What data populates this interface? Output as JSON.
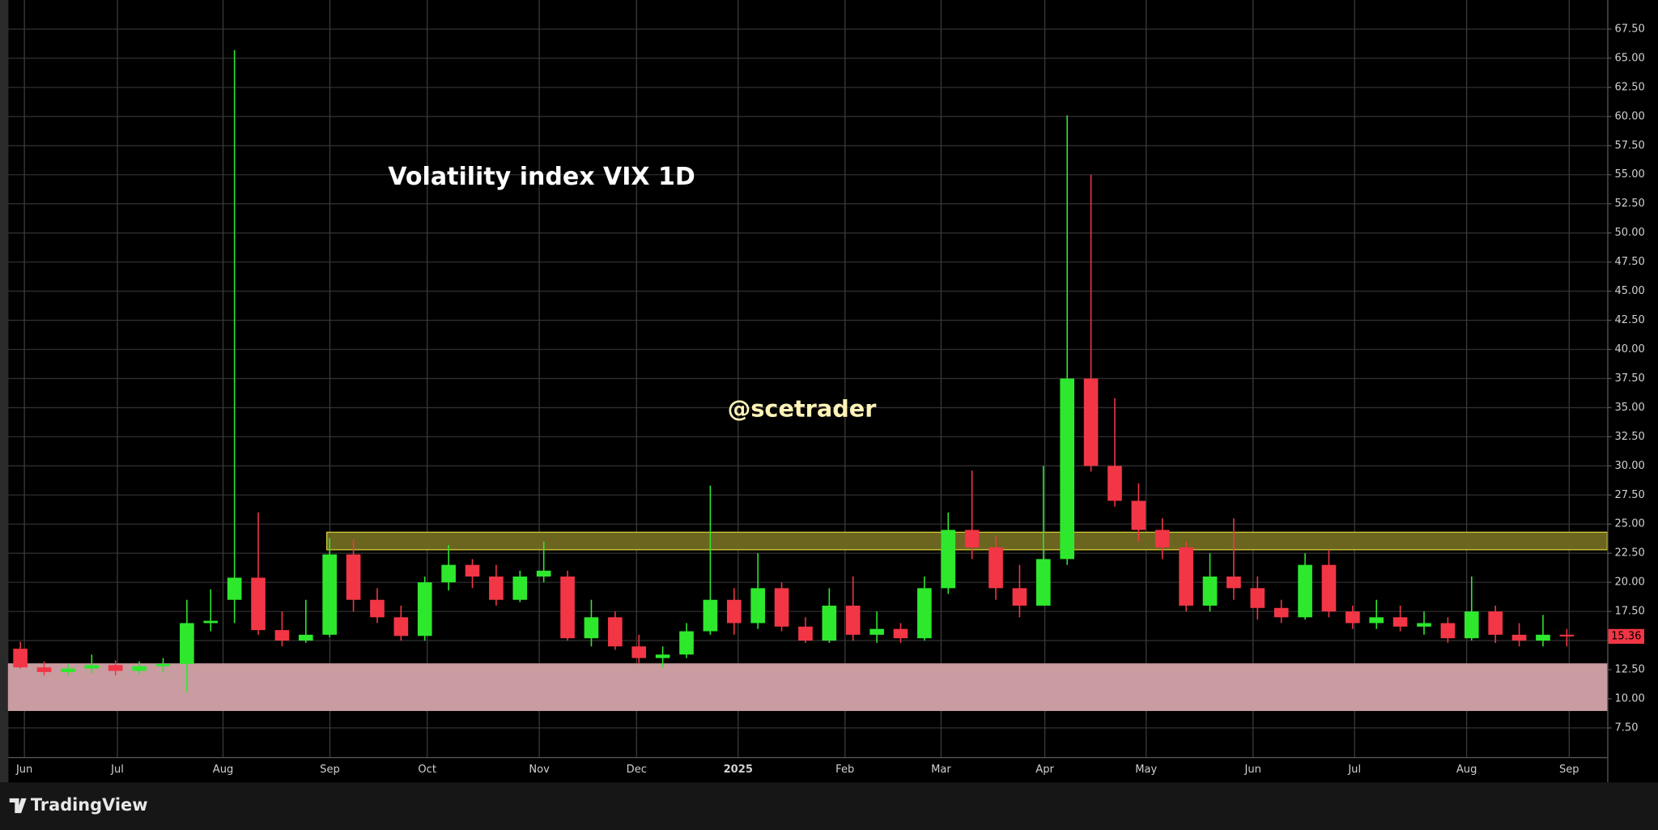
{
  "chart_data": {
    "type": "candlestick",
    "title": "Volatility index VIX 1D",
    "watermark": "@scetrader",
    "brand": "TradingView",
    "up_color": "#2ee82e",
    "down_color": "#f23645",
    "grid": true,
    "xlim": [
      0,
      67.2
    ],
    "ylim": [
      5,
      70
    ],
    "xticks": [
      {
        "value": 0.67,
        "label": "Jun"
      },
      {
        "value": 4.58,
        "label": "Jul"
      },
      {
        "value": 9.02,
        "label": "Aug"
      },
      {
        "value": 13.51,
        "label": "Sep"
      },
      {
        "value": 17.6,
        "label": "Oct"
      },
      {
        "value": 22.31,
        "label": "Nov"
      },
      {
        "value": 26.4,
        "label": "Dec"
      },
      {
        "value": 30.67,
        "label": "2025"
      },
      {
        "value": 35.16,
        "label": "Feb"
      },
      {
        "value": 39.2,
        "label": "Mar"
      },
      {
        "value": 43.56,
        "label": "Apr"
      },
      {
        "value": 47.82,
        "label": "May"
      },
      {
        "value": 52.31,
        "label": "Jun"
      },
      {
        "value": 56.58,
        "label": "Jul"
      },
      {
        "value": 61.29,
        "label": "Aug"
      },
      {
        "value": 65.6,
        "label": "Sep"
      }
    ],
    "yticks": [
      {
        "value": 7.5,
        "label": "7.50"
      },
      {
        "value": 10,
        "label": "10.00"
      },
      {
        "value": 12.5,
        "label": "12.50"
      },
      {
        "value": 15,
        "label": "15.00"
      },
      {
        "value": 17.5,
        "label": "17.50"
      },
      {
        "value": 20,
        "label": "20.00"
      },
      {
        "value": 22.5,
        "label": "22.50"
      },
      {
        "value": 25,
        "label": "25.00"
      },
      {
        "value": 27.5,
        "label": "27.50"
      },
      {
        "value": 30,
        "label": "30.00"
      },
      {
        "value": 32.5,
        "label": "32.50"
      },
      {
        "value": 35,
        "label": "35.00"
      },
      {
        "value": 37.5,
        "label": "37.50"
      },
      {
        "value": 40,
        "label": "40.00"
      },
      {
        "value": 42.5,
        "label": "42.50"
      },
      {
        "value": 45,
        "label": "45.00"
      },
      {
        "value": 47.5,
        "label": "47.50"
      },
      {
        "value": 50,
        "label": "50.00"
      },
      {
        "value": 52.5,
        "label": "52.50"
      },
      {
        "value": 55,
        "label": "55.00"
      },
      {
        "value": 57.5,
        "label": "57.50"
      },
      {
        "value": 60,
        "label": "60.00"
      },
      {
        "value": 62.5,
        "label": "62.50"
      },
      {
        "value": 65,
        "label": "65.00"
      },
      {
        "value": 67.5,
        "label": "67.50"
      }
    ],
    "zones": [
      {
        "from": 13.38,
        "to": 67.2,
        "low": 22.8,
        "high": 24.3,
        "color": "#6b6520",
        "border": "#d6cc3a"
      },
      {
        "from": 0,
        "to": 67.2,
        "low": 9.0,
        "high": 13.0,
        "color": "#c89ca0",
        "border": "#c89ca0"
      }
    ],
    "x": [
      0.5,
      1.5,
      2.5,
      3.5,
      4.5,
      5.5,
      6.5,
      7.5,
      8.5,
      9.5,
      10.5,
      11.5,
      12.5,
      13.5,
      14.5,
      15.5,
      16.5,
      17.5,
      18.5,
      19.5,
      20.5,
      21.5,
      22.5,
      23.5,
      24.5,
      25.5,
      26.5,
      27.5,
      28.5,
      29.5,
      30.5,
      31.5,
      32.5,
      33.5,
      34.5,
      35.5,
      36.5,
      37.5,
      38.5,
      39.5,
      40.5,
      41.5,
      42.5,
      43.5,
      44.5,
      45.5,
      46.5,
      47.5,
      48.5,
      49.5,
      50.5,
      51.5,
      52.5,
      53.5,
      54.5,
      55.5,
      56.5,
      57.5,
      58.5,
      59.5,
      60.5,
      61.5,
      62.5,
      63.5,
      64.5,
      65.5
    ],
    "open": [
      14.3,
      12.7,
      12.3,
      12.6,
      12.9,
      12.4,
      12.8,
      13.0,
      16.5,
      18.5,
      20.4,
      15.9,
      15.0,
      15.5,
      22.4,
      18.5,
      17.0,
      15.4,
      20.0,
      21.5,
      20.5,
      18.5,
      20.5,
      20.5,
      15.2,
      17.0,
      14.5,
      13.5,
      13.8,
      15.8,
      18.5,
      16.5,
      19.5,
      16.2,
      15.0,
      18.0,
      15.5,
      16.0,
      15.2,
      19.5,
      24.5,
      23.0,
      19.5,
      18.0,
      22.0,
      37.5,
      30.0,
      27.0,
      24.5,
      23.0,
      18.0,
      20.5,
      19.5,
      17.8,
      17.0,
      21.5,
      17.5,
      16.5,
      17.0,
      16.2,
      16.5,
      15.2,
      17.5,
      15.5,
      15.0,
      15.5
    ],
    "high": [
      14.9,
      13.2,
      13.0,
      13.8,
      13.3,
      13.2,
      13.5,
      18.5,
      19.4,
      65.7,
      26.0,
      17.5,
      18.5,
      23.8,
      23.7,
      19.5,
      18.0,
      20.5,
      23.2,
      22.0,
      21.5,
      21.0,
      23.5,
      21.0,
      18.5,
      17.5,
      15.5,
      14.5,
      16.5,
      28.3,
      19.5,
      22.5,
      20.0,
      17.0,
      19.5,
      20.5,
      17.5,
      16.5,
      20.5,
      26.0,
      29.6,
      24.0,
      21.5,
      30.0,
      60.1,
      55.0,
      35.8,
      28.5,
      25.5,
      23.5,
      22.5,
      25.5,
      20.5,
      18.5,
      22.5,
      22.8,
      18.0,
      18.5,
      18.0,
      17.5,
      17.0,
      20.5,
      18.0,
      16.5,
      17.2,
      16.0
    ],
    "low": [
      12.6,
      12.0,
      12.0,
      12.2,
      12.0,
      12.1,
      12.3,
      10.6,
      15.8,
      16.5,
      15.5,
      14.5,
      14.8,
      15.3,
      17.5,
      16.5,
      15.0,
      15.0,
      19.3,
      19.5,
      18.0,
      18.3,
      20.0,
      15.0,
      14.5,
      14.2,
      13.0,
      12.7,
      13.5,
      15.5,
      15.5,
      16.0,
      15.8,
      14.8,
      14.8,
      15.0,
      14.8,
      14.8,
      15.0,
      19.0,
      22.0,
      18.5,
      17.0,
      18.0,
      21.5,
      29.5,
      26.5,
      23.5,
      22.0,
      17.5,
      17.5,
      18.5,
      16.8,
      16.5,
      16.8,
      17.0,
      16.0,
      16.0,
      15.8,
      15.5,
      14.8,
      15.0,
      14.8,
      14.5,
      14.5,
      14.5
    ],
    "close": [
      12.7,
      12.3,
      12.6,
      12.9,
      12.4,
      12.8,
      13.0,
      16.5,
      16.7,
      20.4,
      15.9,
      15.0,
      15.5,
      22.4,
      18.5,
      17.0,
      15.4,
      20.0,
      21.5,
      20.5,
      18.5,
      20.5,
      21.0,
      15.2,
      17.0,
      14.5,
      13.5,
      13.8,
      15.8,
      18.5,
      16.5,
      19.5,
      16.2,
      15.0,
      18.0,
      15.5,
      16.0,
      15.2,
      19.5,
      24.5,
      23.0,
      19.5,
      18.0,
      22.0,
      37.5,
      30.0,
      27.0,
      24.5,
      23.0,
      18.0,
      20.5,
      19.5,
      17.8,
      17.0,
      21.5,
      17.5,
      16.5,
      17.0,
      16.2,
      16.5,
      15.2,
      17.5,
      15.5,
      15.0,
      15.5,
      15.36
    ]
  }
}
